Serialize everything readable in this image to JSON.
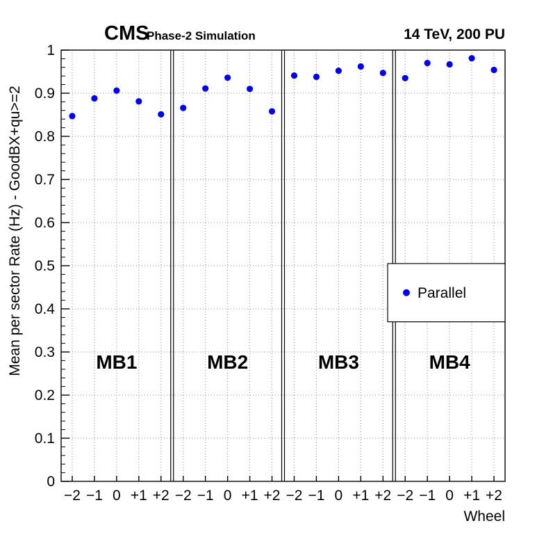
{
  "header": {
    "cms": "CMS",
    "subtitle": "Phase-2 Simulation",
    "right_label": "14 TeV, 200 PU"
  },
  "chart_data": {
    "type": "scatter",
    "title": "",
    "ylabel": "Mean per sector Rate (Hz) - GoodBX+qu>=2",
    "xlabel": "Wheel",
    "ylim": [
      0,
      1
    ],
    "y_ticks": [
      0,
      0.1,
      0.2,
      0.3,
      0.4,
      0.5,
      0.6,
      0.7,
      0.8,
      0.9,
      1
    ],
    "grid": true,
    "marker": {
      "shape": "circle",
      "color": "#0000ee"
    },
    "legend": {
      "label": "Parallel",
      "position": "middle-right"
    },
    "groups": [
      {
        "label": "MB1",
        "wheels": [
          "−2",
          "−1",
          "0",
          "+1",
          "+2"
        ],
        "values": [
          0.847,
          0.888,
          0.906,
          0.881,
          0.851
        ],
        "errors": [
          0.004,
          0.003,
          0.003,
          0.003,
          0.004
        ]
      },
      {
        "label": "MB2",
        "wheels": [
          "−2",
          "−1",
          "0",
          "+1",
          "+2"
        ],
        "values": [
          0.866,
          0.911,
          0.936,
          0.91,
          0.858
        ],
        "errors": [
          0.004,
          0.003,
          0.003,
          0.003,
          0.004
        ]
      },
      {
        "label": "MB3",
        "wheels": [
          "−2",
          "−1",
          "0",
          "+1",
          "+2"
        ],
        "values": [
          0.941,
          0.938,
          0.952,
          0.962,
          0.947
        ],
        "errors": [
          0.003,
          0.003,
          0.003,
          0.003,
          0.003
        ]
      },
      {
        "label": "MB4",
        "wheels": [
          "−2",
          "−1",
          "0",
          "+1",
          "+2"
        ],
        "values": [
          0.935,
          0.97,
          0.967,
          0.981,
          0.954
        ],
        "errors": [
          0.003,
          0.003,
          0.003,
          0.003,
          0.003
        ]
      }
    ]
  }
}
